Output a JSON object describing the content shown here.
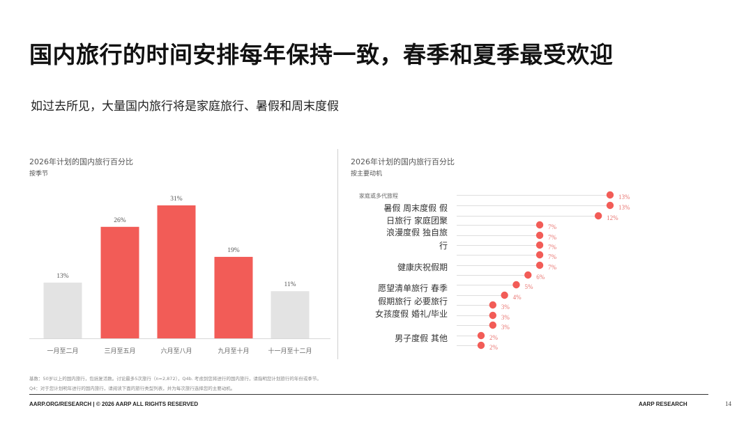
{
  "slide": {
    "title": "国内旅行的时间安排每年保持一致，春季和夏季最受欢迎",
    "subtitle": "如过去所见，大量国内旅行将是家庭旅行、暑假和周末度假",
    "page_number": "14"
  },
  "footnotes": {
    "line1": "基数：50岁以上的国内旅行，包括复活数。讨论最多5次旅行（n=2,872），Q4b. 考虑到您将进行的国内旅行，请指明您计划旅行的年份或季节。",
    "line2": "Q4：对于您计划明年进行的国内旅行，请阅读下面的旅行类型列表，并为每次旅行选择您的主要动机。"
  },
  "footer": {
    "left": "AARP.ORG/RESEARCH | © 2026 AARP ALL RIGHTS RESERVED",
    "right": "AARP RESEARCH"
  },
  "colors": {
    "highlight": "#f25c57",
    "muted": "#e3e3e3",
    "label_red": "#e8736f"
  },
  "chart_data": [
    {
      "type": "bar",
      "title": "2026年计划的国内旅行百分比",
      "subtitle": "按季节",
      "categories": [
        "一月至二月",
        "三月至五月",
        "六月至八月",
        "九月至十月",
        "十一月至十二月"
      ],
      "values": [
        13,
        26,
        31,
        19,
        11
      ],
      "value_labels": [
        "13%",
        "26%",
        "31%",
        "19%",
        "11%"
      ],
      "highlighted": [
        false,
        true,
        true,
        true,
        false
      ],
      "ylim": [
        0,
        31
      ]
    },
    {
      "type": "scatter",
      "title": "2026年计划的国内旅行百分比",
      "subtitle": "按主要动机",
      "category_labels": [
        "家庭或多代旅程",
        "暑假 周末度假 假",
        "日旅行 家庭团聚",
        "浪漫度假 独自旅",
        "行",
        "健康庆祝假期",
        "愿望清单旅行 春季",
        "假期旅行 必要旅行",
        "女孩度假 婚礼/毕业",
        "男子度假 其他"
      ],
      "values": [
        13,
        13,
        12,
        7,
        7,
        7,
        7,
        7,
        6,
        5,
        4,
        3,
        3,
        3,
        2,
        2
      ],
      "value_labels": [
        "13%",
        "13%",
        "12%",
        "7%",
        "7%",
        "7%",
        "7%",
        "7%",
        "6%",
        "5%",
        "4%",
        "3%",
        "3%",
        "3%",
        "2%",
        "2%"
      ]
    }
  ]
}
